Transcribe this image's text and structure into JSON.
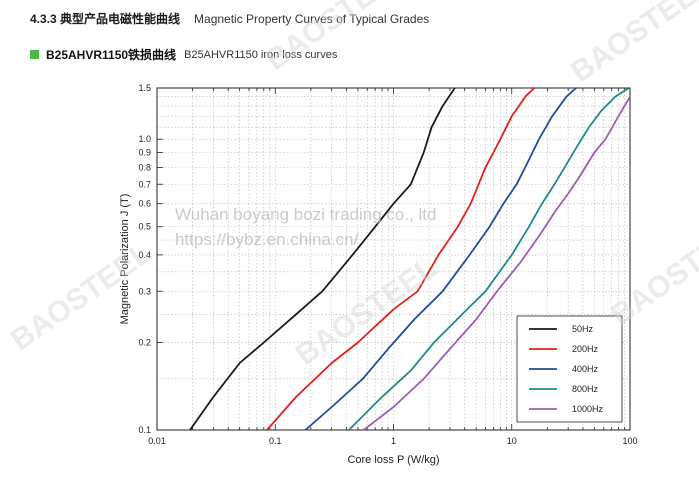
{
  "header": {
    "section_cn": "4.3.3 典型产品电磁性能曲线",
    "section_en": "Magnetic Property Curves of Typical Grades"
  },
  "subheader": {
    "title_cn": "B25AHVR1150铁损曲线",
    "title_en": "B25AHVR1150 iron loss curves",
    "marker_color": "#4db848"
  },
  "watermark": {
    "brand": "BAOSTEEL",
    "line1": "Wuhan boyang bozi trading co., ltd",
    "line2": "https://bybz.en.china.cn/"
  },
  "chart_data": {
    "type": "line",
    "xlabel": "Core  loss P (W/kg)",
    "ylabel": "Magnetic Polarization J (T)",
    "xscale": "log",
    "yscale": "log",
    "xlim": [
      0.01,
      100
    ],
    "ylim": [
      0.1,
      1.5
    ],
    "xticks": [
      0.01,
      0.1,
      1,
      10,
      100
    ],
    "xtick_labels": [
      "0.01",
      "0.1",
      "1",
      "10",
      "100"
    ],
    "yticks": [
      0.1,
      0.2,
      0.3,
      0.4,
      0.5,
      0.6,
      0.7,
      0.8,
      0.9,
      1.0,
      1.5
    ],
    "ytick_labels": [
      "0.1",
      "0.2",
      "0.3",
      "0.4",
      "0.5",
      "0.6",
      "0.7",
      "0.8",
      "0.9",
      "1.0",
      "1.5"
    ],
    "grid": true,
    "legend_position": "bottom-right",
    "series": [
      {
        "name": "50Hz",
        "color": "#1a1a1a",
        "points": [
          [
            0.019,
            0.1
          ],
          [
            0.03,
            0.13
          ],
          [
            0.05,
            0.17
          ],
          [
            0.08,
            0.2
          ],
          [
            0.15,
            0.25
          ],
          [
            0.25,
            0.3
          ],
          [
            0.45,
            0.4
          ],
          [
            0.7,
            0.5
          ],
          [
            1.0,
            0.6
          ],
          [
            1.4,
            0.7
          ],
          [
            1.8,
            0.9
          ],
          [
            2.1,
            1.1
          ],
          [
            2.6,
            1.3
          ],
          [
            3.3,
            1.5
          ]
        ]
      },
      {
        "name": "200Hz",
        "color": "#e3201b",
        "points": [
          [
            0.085,
            0.1
          ],
          [
            0.15,
            0.13
          ],
          [
            0.3,
            0.17
          ],
          [
            0.5,
            0.2
          ],
          [
            1.0,
            0.26
          ],
          [
            1.6,
            0.3
          ],
          [
            2.4,
            0.4
          ],
          [
            3.5,
            0.5
          ],
          [
            4.5,
            0.6
          ],
          [
            6,
            0.8
          ],
          [
            7,
            0.9
          ],
          [
            8,
            1.0
          ],
          [
            10,
            1.2
          ],
          [
            13,
            1.4
          ],
          [
            15.5,
            1.5
          ]
        ]
      },
      {
        "name": "400Hz",
        "color": "#1f4e9c",
        "points": [
          [
            0.18,
            0.1
          ],
          [
            0.3,
            0.12
          ],
          [
            0.55,
            0.15
          ],
          [
            0.9,
            0.19
          ],
          [
            1.5,
            0.24
          ],
          [
            2.6,
            0.3
          ],
          [
            4.4,
            0.4
          ],
          [
            6.5,
            0.5
          ],
          [
            8.5,
            0.6
          ],
          [
            11,
            0.7
          ],
          [
            13,
            0.8
          ],
          [
            17,
            1.0
          ],
          [
            22,
            1.2
          ],
          [
            29,
            1.4
          ],
          [
            35,
            1.5
          ]
        ]
      },
      {
        "name": "800Hz",
        "color": "#1f8a88",
        "points": [
          [
            0.42,
            0.1
          ],
          [
            0.8,
            0.13
          ],
          [
            1.4,
            0.16
          ],
          [
            2.2,
            0.2
          ],
          [
            4.2,
            0.26
          ],
          [
            6,
            0.3
          ],
          [
            10,
            0.4
          ],
          [
            14,
            0.5
          ],
          [
            18,
            0.6
          ],
          [
            23,
            0.7
          ],
          [
            28,
            0.8
          ],
          [
            36,
            0.95
          ],
          [
            45,
            1.1
          ],
          [
            57,
            1.25
          ],
          [
            75,
            1.4
          ],
          [
            98,
            1.5
          ]
        ]
      },
      {
        "name": "1000Hz",
        "color": "#a15bb5",
        "points": [
          [
            0.56,
            0.1
          ],
          [
            1.0,
            0.12
          ],
          [
            1.8,
            0.15
          ],
          [
            3,
            0.19
          ],
          [
            5,
            0.24
          ],
          [
            7.5,
            0.3
          ],
          [
            12,
            0.38
          ],
          [
            18,
            0.48
          ],
          [
            23,
            0.56
          ],
          [
            30,
            0.65
          ],
          [
            38,
            0.75
          ],
          [
            50,
            0.9
          ],
          [
            62,
            1.0
          ],
          [
            80,
            1.2
          ],
          [
            100,
            1.4
          ]
        ]
      }
    ]
  }
}
